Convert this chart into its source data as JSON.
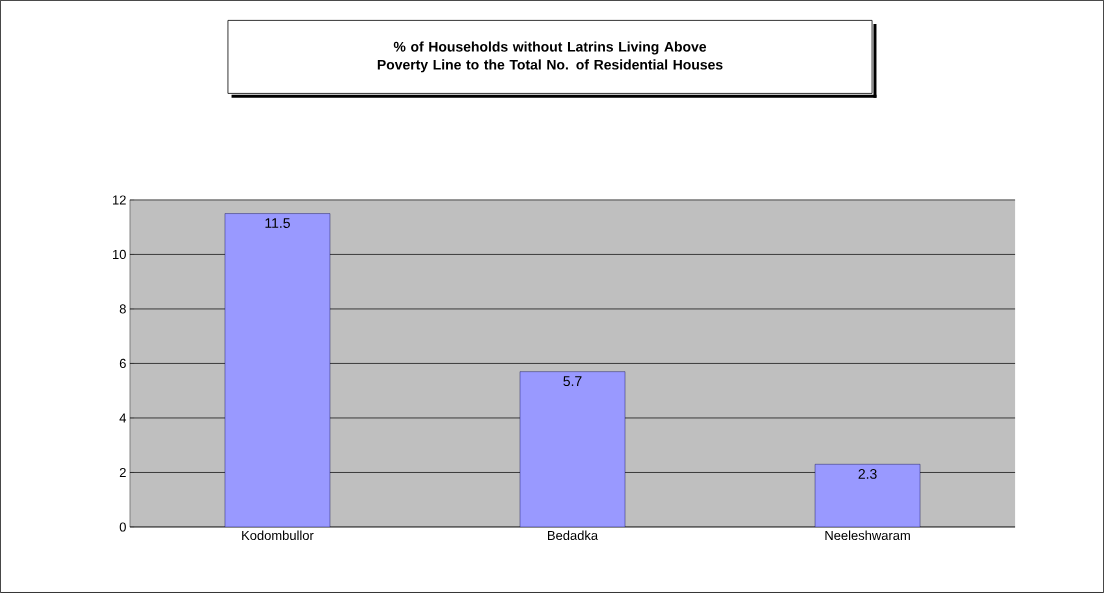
{
  "chart_data": {
    "type": "bar",
    "title": "% of Households without Latrins Living Above Poverty Line to the Total No. of Residential Houses",
    "categories": [
      "Kodombullor",
      "Bedadka",
      "Neeleshwaram"
    ],
    "values": [
      11.5,
      5.7,
      2.3
    ],
    "color": "#9999ff",
    "ylim": [
      0,
      12
    ],
    "yticks": [
      0,
      2,
      4,
      6,
      8,
      10,
      12
    ],
    "grid": "y",
    "data_labels": true
  }
}
